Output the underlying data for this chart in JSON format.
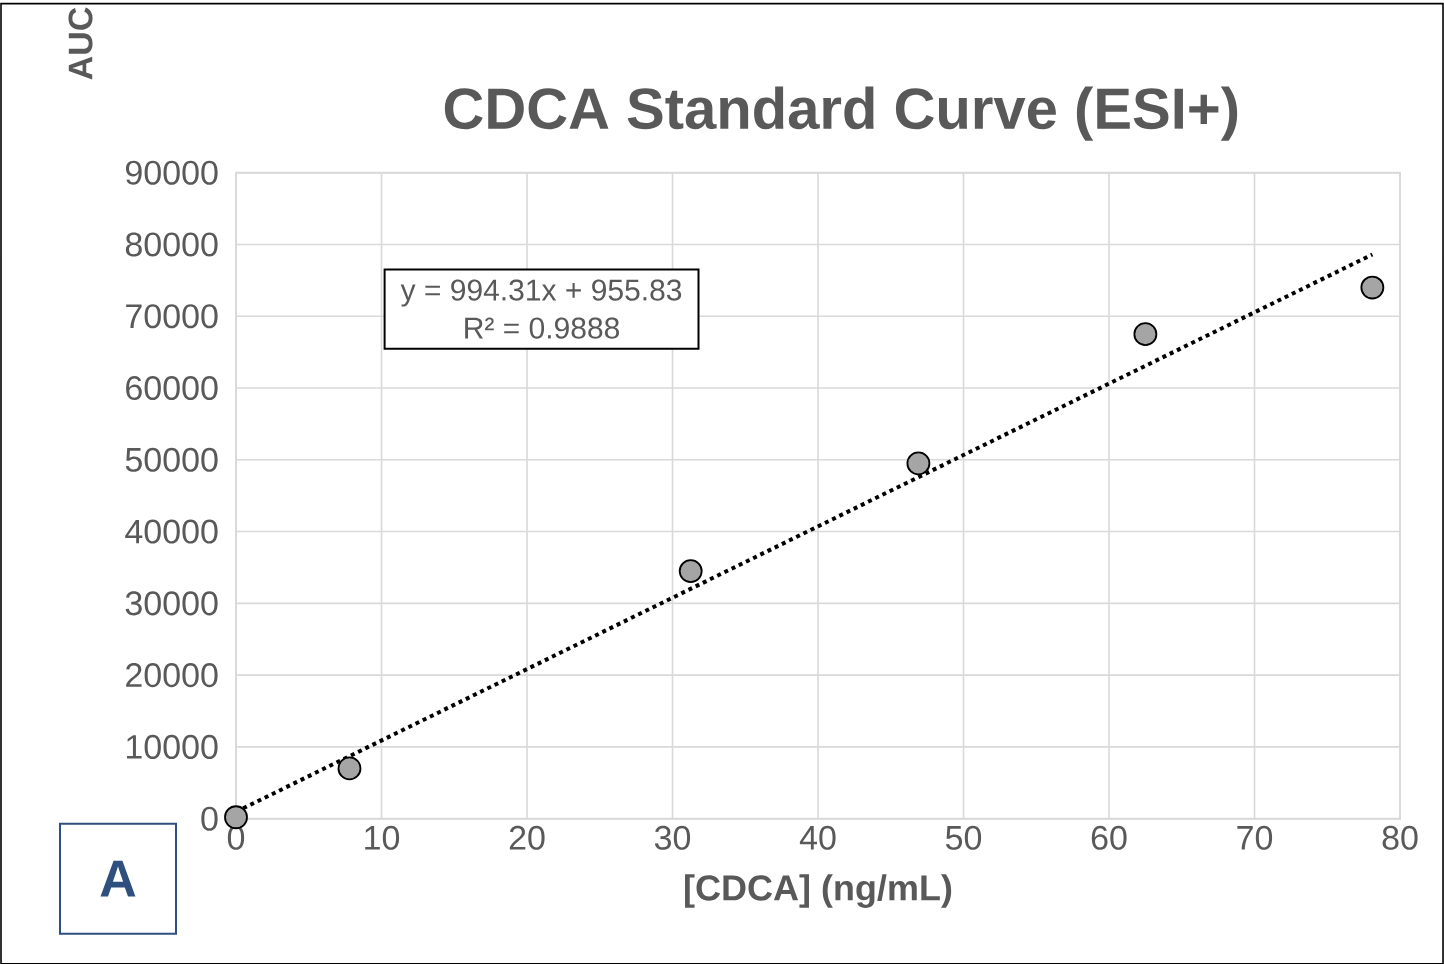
{
  "chart_data": {
    "type": "scatter",
    "title": "CDCA Standard Curve (ESI+)",
    "xlabel": "[CDCA] (ng/mL)",
    "ylabel": "AUC",
    "xlim": [
      0,
      80
    ],
    "xticks": [
      0,
      10,
      20,
      30,
      40,
      50,
      60,
      70,
      80
    ],
    "ylim": [
      0,
      90000
    ],
    "yticks": [
      0,
      10000,
      20000,
      30000,
      40000,
      50000,
      60000,
      70000,
      80000,
      90000
    ],
    "grid": true,
    "series": [
      {
        "x": [
          0,
          7.8,
          31.25,
          46.9,
          62.5,
          78.1
        ],
        "values": [
          200,
          7000,
          34500,
          49500,
          67500,
          74000
        ],
        "color": "#a5a5a5",
        "marker": "circle"
      },
      {
        "type": "line",
        "x": [
          0,
          78.1
        ],
        "values": [
          956,
          78600
        ],
        "color": "#000000",
        "line_style": "dotted",
        "marker": "none"
      }
    ],
    "annotations": [
      "y = 994.31x + 955.83",
      "R² = 0.9888",
      "A"
    ]
  }
}
